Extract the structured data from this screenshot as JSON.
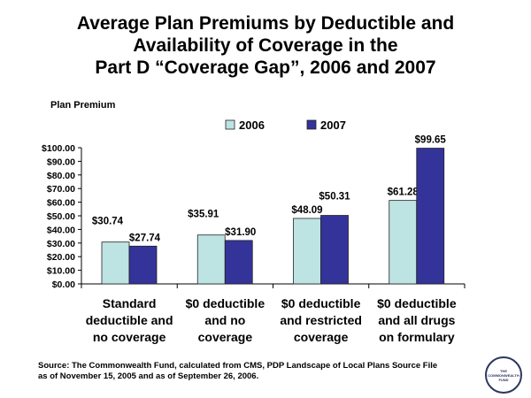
{
  "chart_data": {
    "type": "bar",
    "title_lines": [
      "Average Plan Premiums by Deductible and",
      "Availability of Coverage in the",
      "Part D “Coverage Gap”, 2006 and 2007"
    ],
    "ylabel": "Plan Premium",
    "xlabel": "",
    "ylim": [
      0,
      100
    ],
    "yticks": [
      "$0.00",
      "$10.00",
      "$20.00",
      "$30.00",
      "$40.00",
      "$50.00",
      "$60.00",
      "$70.00",
      "$80.00",
      "$90.00",
      "$100.00"
    ],
    "categories": [
      [
        "Standard",
        "deductible and",
        "no coverage"
      ],
      [
        "$0 deductible",
        "and no",
        "coverage"
      ],
      [
        "$0 deductible",
        "and restricted",
        "coverage"
      ],
      [
        "$0 deductible",
        "and all drugs",
        "on formulary"
      ]
    ],
    "series": [
      {
        "name": "2006",
        "color": "#bde3e3",
        "values": [
          30.74,
          35.91,
          48.09,
          61.28
        ],
        "labels": [
          "$30.74",
          "$35.91",
          "$48.09",
          "$61.28"
        ]
      },
      {
        "name": "2007",
        "color": "#333399",
        "values": [
          27.74,
          31.9,
          50.31,
          99.65
        ],
        "labels": [
          "$27.74",
          "$31.90",
          "$50.31",
          "$99.65"
        ]
      }
    ],
    "grid": false,
    "legend": "top"
  },
  "source": [
    "Source: The Commonwealth Fund, calculated from CMS, PDP Landscape of Local Plans Source File",
    "as of November 15, 2005 and as of September 26, 2006."
  ],
  "logo_text": "THE COMMONWEALTH FUND"
}
